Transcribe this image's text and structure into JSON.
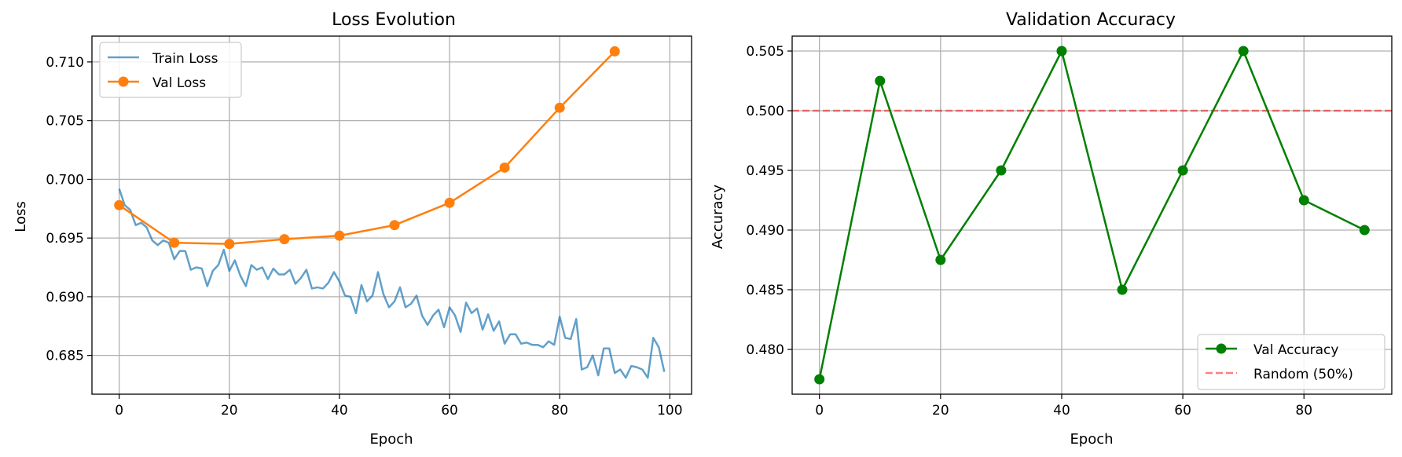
{
  "chart_data": [
    {
      "type": "line",
      "title": "Loss Evolution",
      "xlabel": "Epoch",
      "ylabel": "Loss",
      "xlim": [
        -4.95,
        103.95
      ],
      "ylim": [
        0.6817,
        0.7122
      ],
      "xticks": [
        0,
        20,
        40,
        60,
        80,
        100
      ],
      "xtick_labels": [
        "0",
        "20",
        "40",
        "60",
        "80",
        "100"
      ],
      "yticks": [
        0.685,
        0.69,
        0.695,
        0.7,
        0.705,
        0.71
      ],
      "ytick_labels": [
        "0.685",
        "0.690",
        "0.695",
        "0.700",
        "0.705",
        "0.710"
      ],
      "grid": true,
      "legend_position": "upper-left",
      "series": [
        {
          "name": "Train Loss",
          "color": "#1f77b4",
          "alpha": 0.7,
          "marker": "none",
          "x": [
            0,
            1,
            2,
            3,
            4,
            5,
            6,
            7,
            8,
            9,
            10,
            11,
            12,
            13,
            14,
            15,
            16,
            17,
            18,
            19,
            20,
            21,
            22,
            23,
            24,
            25,
            26,
            27,
            28,
            29,
            30,
            31,
            32,
            33,
            34,
            35,
            36,
            37,
            38,
            39,
            40,
            41,
            42,
            43,
            44,
            45,
            46,
            47,
            48,
            49,
            50,
            51,
            52,
            53,
            54,
            55,
            56,
            57,
            58,
            59,
            60,
            61,
            62,
            63,
            64,
            65,
            66,
            67,
            68,
            69,
            70,
            71,
            72,
            73,
            74,
            75,
            76,
            77,
            78,
            79,
            80,
            81,
            82,
            83,
            84,
            85,
            86,
            87,
            88,
            89,
            90,
            91,
            92,
            93,
            94,
            95,
            96,
            97,
            98,
            99
          ],
          "values": [
            0.6992,
            0.6978,
            0.6974,
            0.6961,
            0.6963,
            0.6959,
            0.6948,
            0.6944,
            0.6948,
            0.6946,
            0.6932,
            0.6939,
            0.6939,
            0.6923,
            0.6925,
            0.6924,
            0.6909,
            0.6922,
            0.6927,
            0.694,
            0.6922,
            0.6931,
            0.6918,
            0.6909,
            0.6927,
            0.6923,
            0.6925,
            0.6915,
            0.6924,
            0.6919,
            0.6919,
            0.6923,
            0.6911,
            0.6916,
            0.6923,
            0.6907,
            0.6908,
            0.6907,
            0.6912,
            0.6921,
            0.6913,
            0.6901,
            0.69,
            0.6886,
            0.691,
            0.6896,
            0.6901,
            0.6921,
            0.6902,
            0.6891,
            0.6896,
            0.6908,
            0.6891,
            0.6894,
            0.6901,
            0.6884,
            0.6876,
            0.6884,
            0.6889,
            0.6874,
            0.6891,
            0.6884,
            0.687,
            0.6895,
            0.6886,
            0.689,
            0.6872,
            0.6885,
            0.6871,
            0.6879,
            0.686,
            0.6868,
            0.6868,
            0.686,
            0.6861,
            0.6859,
            0.6859,
            0.6857,
            0.6862,
            0.6859,
            0.6883,
            0.6865,
            0.6864,
            0.6881,
            0.6838,
            0.684,
            0.685,
            0.6833,
            0.6856,
            0.6856,
            0.6835,
            0.6838,
            0.6831,
            0.6841,
            0.684,
            0.6838,
            0.6831,
            0.6865,
            0.6857,
            0.6836
          ]
        },
        {
          "name": "Val Loss",
          "color": "#ff7f0e",
          "marker": "circle",
          "x": [
            0,
            10,
            20,
            30,
            40,
            50,
            60,
            70,
            80,
            90
          ],
          "values": [
            0.6978,
            0.6946,
            0.6945,
            0.6949,
            0.6952,
            0.6961,
            0.698,
            0.701,
            0.7061,
            0.7109
          ]
        }
      ]
    },
    {
      "type": "line",
      "title": "Validation Accuracy",
      "xlabel": "Epoch",
      "ylabel": "Accuracy",
      "xlim": [
        -4.5,
        94.5
      ],
      "ylim": [
        0.47625,
        0.50625
      ],
      "xticks": [
        0,
        20,
        40,
        60,
        80
      ],
      "xtick_labels": [
        "0",
        "20",
        "40",
        "60",
        "80"
      ],
      "yticks": [
        0.48,
        0.485,
        0.49,
        0.495,
        0.5,
        0.505
      ],
      "ytick_labels": [
        "0.480",
        "0.485",
        "0.490",
        "0.495",
        "0.500",
        "0.505"
      ],
      "grid": true,
      "legend_position": "lower-right",
      "series": [
        {
          "name": "Val Accuracy",
          "color": "#008000",
          "marker": "circle",
          "x": [
            0,
            10,
            20,
            30,
            40,
            50,
            60,
            70,
            80,
            90
          ],
          "values": [
            0.4775,
            0.5025,
            0.4875,
            0.495,
            0.505,
            0.485,
            0.495,
            0.505,
            0.4925,
            0.49
          ]
        }
      ],
      "hlines": [
        {
          "name": "Random (50%)",
          "value": 0.5,
          "color": "#ff0000",
          "alpha": 0.5,
          "style": "dashed"
        }
      ]
    }
  ]
}
